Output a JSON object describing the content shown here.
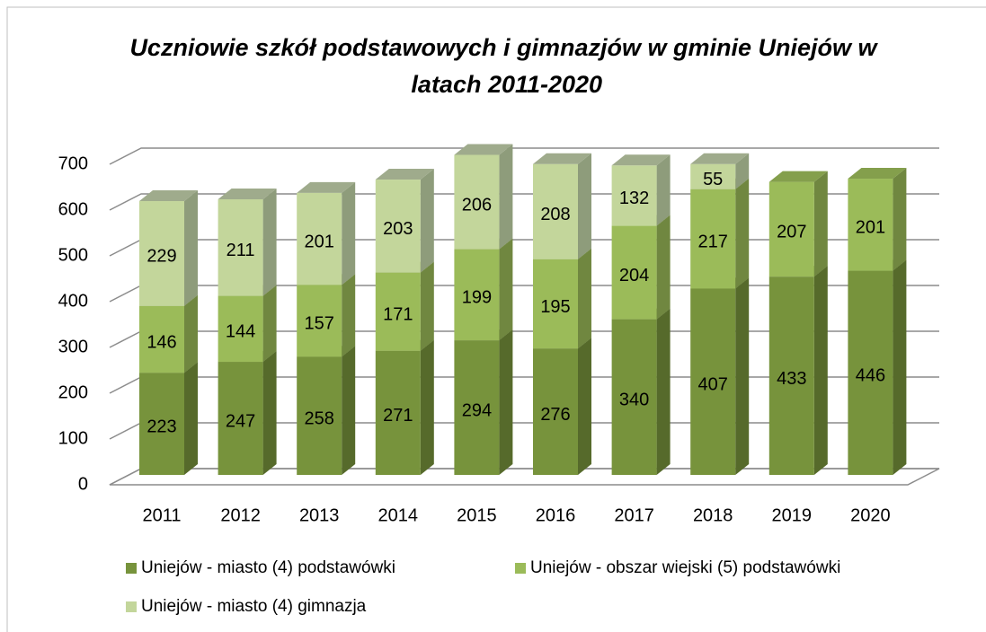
{
  "chart_data": {
    "type": "bar3d_stacked",
    "title": "Uczniowie szkół podstawowych i gimnazjów w gminie Uniejów w latach 2011-2020",
    "categories": [
      "2011",
      "2012",
      "2013",
      "2014",
      "2015",
      "2016",
      "2017",
      "2018",
      "2019",
      "2020"
    ],
    "series": [
      {
        "name": "Uniejów - miasto (4) podstawówki",
        "color": "#77933c",
        "values": [
          223,
          247,
          258,
          271,
          294,
          276,
          340,
          407,
          433,
          446
        ]
      },
      {
        "name": "Uniejów - obszar wiejski (5) podstawówki",
        "color": "#9bbb59",
        "values": [
          146,
          144,
          157,
          171,
          199,
          195,
          204,
          217,
          207,
          201
        ]
      },
      {
        "name": "Uniejów - miasto (4) gimnazja",
        "color": "#c3d69b",
        "values": [
          229,
          211,
          201,
          203,
          206,
          208,
          132,
          55,
          null,
          null
        ]
      }
    ],
    "ylim": [
      0,
      700
    ],
    "yticks": [
      0,
      100,
      200,
      300,
      400,
      500,
      600,
      700
    ],
    "grid": true
  }
}
